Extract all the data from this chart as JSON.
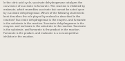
{
  "background_color": "#edeae4",
  "text_color": "#4a4a4a",
  "font_size": 2.6,
  "linespacing": 1.3,
  "text": "In the citric acid cycle, succinate dehydrogenase catalyzes the\nconversion of succinate to fumarate. This reaction is inhibited by\nmalonate, which resembles succinate but cannot be acted upon\nby succinate dehydrogenase. Which of the following statements\nbest describes the role played by molecules described in the\nreaction? Succinate dehydrogenase is the enzyme, and fumarate\nis the substrate in the reaction. Succinate dehydrogenase is the\nenzyme, and malonate is the substrate in the reaction. Succinate\nis the substrate, and fumarate is the product in the reaction.\nFumarate is the product, and malonate is a noncompetitive\ninhibitor in the reaction."
}
